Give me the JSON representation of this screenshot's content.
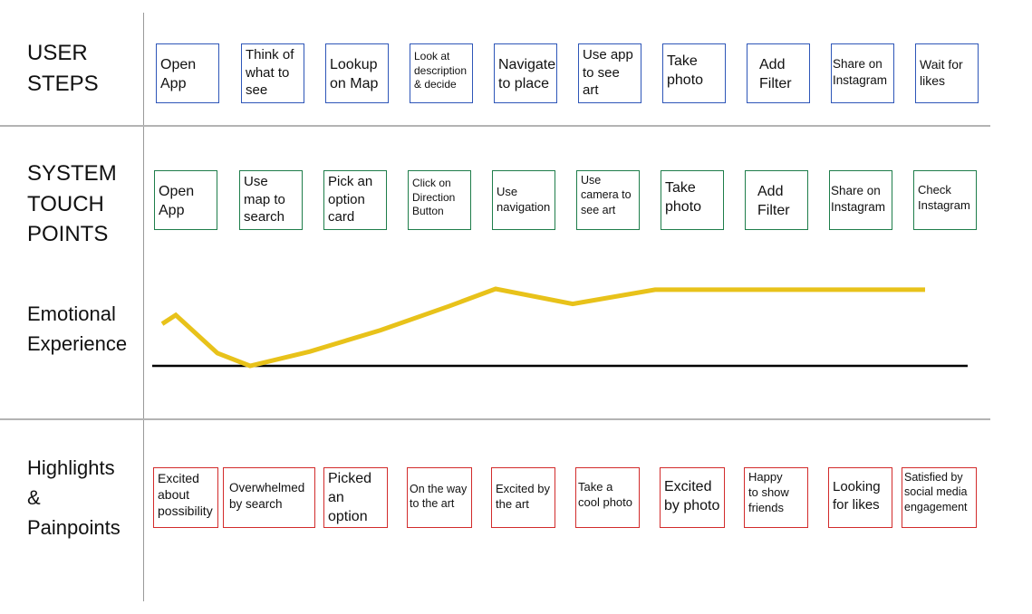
{
  "rows": {
    "user_steps": "USER\nSTEPS",
    "system_touch_points": "SYSTEM\nTOUCH\nPOINTS",
    "emotional_experience": "Emotional\nExperience",
    "highlights_painpoints": "Highlights\n&\nPainpoints"
  },
  "user_steps": [
    "Open\nApp",
    "Think of\nwhat to\nsee",
    "Lookup\non Map",
    "Look at\ndescription\n& decide",
    "Navigate\nto place",
    "Use app\nto see\nart",
    "Take\nphoto",
    "Add\nFilter",
    "Share on\nInstagram",
    "Wait for\nlikes"
  ],
  "touch_points": [
    "Open\nApp",
    "Use\nmap to\nsearch",
    "Pick an\noption\ncard",
    "Click on\nDirection\nButton",
    "Use\nnavigation",
    "Use\ncamera to\nsee art",
    "Take\nphoto",
    "Add\nFilter",
    "Share on\nInstagram",
    "Check\nInstagram"
  ],
  "highlights": [
    "Excited\nabout\npossibility",
    "Overwhelmed\nby search",
    "Picked\nan\noption",
    "On the way\nto the art",
    "Excited by\nthe art",
    "Take a\ncool photo",
    "Excited\nby photo",
    "Happy\nto show\nfriends",
    "Looking\nfor likes",
    "Satisfied  by\nsocial media\nengagement"
  ],
  "chart_data": {
    "type": "line",
    "title": "",
    "xlabel": "",
    "ylabel": "",
    "ylim": [
      0,
      100
    ],
    "baseline": 0,
    "x": [
      0,
      1,
      2,
      3,
      4,
      5,
      6,
      7,
      8,
      9,
      10,
      11,
      12,
      13,
      14
    ],
    "values": [
      53,
      64,
      16,
      0,
      18,
      45,
      75,
      97,
      78,
      96,
      96,
      96,
      96,
      96,
      96
    ],
    "series_color": "#e8c21a",
    "baseline_color": "#000000"
  }
}
